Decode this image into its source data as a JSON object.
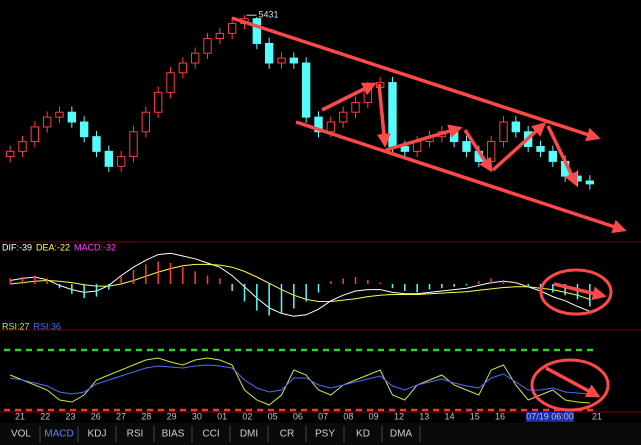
{
  "chart_data": [
    {
      "type": "candlestick",
      "up_color": "#ff3c3c",
      "down_color": "#54fcfc",
      "ylim": [
        4650,
        5470
      ],
      "high_label": "5431",
      "open": [
        4940,
        4958,
        4992,
        5043,
        5077,
        5094,
        5060,
        5009,
        4958,
        4906,
        4940,
        5026,
        5094,
        5163,
        5231,
        5265,
        5299,
        5350,
        5368,
        5402,
        5419,
        5333,
        5265,
        5282,
        5265,
        5077,
        5026,
        5060,
        5094,
        5128,
        5180,
        5197,
        4975,
        4958,
        4992,
        5009,
        5026,
        4992,
        4958,
        4923,
        4992,
        5060,
        5026,
        4975,
        4958,
        4923,
        4872,
        4855
      ],
      "high": [
        4978,
        5012,
        5063,
        5097,
        5114,
        5114,
        5080,
        5029,
        4978,
        4960,
        5046,
        5114,
        5183,
        5251,
        5285,
        5319,
        5370,
        5388,
        5422,
        5431,
        5425,
        5353,
        5302,
        5302,
        5285,
        5097,
        5080,
        5114,
        5148,
        5200,
        5217,
        5217,
        4995,
        5012,
        5029,
        5046,
        5046,
        5012,
        4978,
        5012,
        5080,
        5080,
        5046,
        4995,
        4978,
        4943,
        4892,
        4875
      ],
      "low": [
        4920,
        4938,
        4972,
        5023,
        5057,
        5040,
        4989,
        4938,
        4886,
        4886,
        4920,
        5006,
        5074,
        5143,
        5211,
        5245,
        5279,
        5330,
        5348,
        5382,
        5313,
        5245,
        5245,
        5245,
        5057,
        5006,
        5006,
        5040,
        5074,
        5108,
        5160,
        4955,
        4938,
        4938,
        4972,
        4989,
        4972,
        4938,
        4903,
        4903,
        4972,
        5006,
        4955,
        4938,
        4903,
        4852,
        4835,
        4825
      ],
      "close": [
        4958,
        4992,
        5043,
        5077,
        5094,
        5060,
        5009,
        4958,
        4906,
        4940,
        5026,
        5094,
        5163,
        5231,
        5265,
        5299,
        5350,
        5368,
        5402,
        5419,
        5333,
        5265,
        5282,
        5265,
        5077,
        5026,
        5060,
        5094,
        5128,
        5180,
        5197,
        4975,
        4958,
        4992,
        5009,
        5026,
        4992,
        4958,
        4923,
        4992,
        5060,
        5026,
        4975,
        4958,
        4923,
        4872,
        4855,
        4845
      ]
    },
    {
      "type": "macd",
      "ylim": [
        -60,
        40
      ],
      "series": [
        {
          "label": "DIF:-39",
          "color": "#ffffff",
          "values": [
            5,
            8,
            10,
            6,
            -2,
            -8,
            -12,
            -10,
            -2,
            12,
            24,
            34,
            42,
            44,
            40,
            36,
            30,
            24,
            12,
            -4,
            -20,
            -34,
            -42,
            -46,
            -44,
            -36,
            -24,
            -16,
            -10,
            -8,
            -8,
            -12,
            -14,
            -14,
            -12,
            -10,
            -8,
            -6,
            -2,
            2,
            4,
            2,
            -4,
            -10,
            -18,
            -24,
            -32,
            -39
          ]
        },
        {
          "label": "DEA:-22",
          "color": "#ffff40",
          "values": [
            0,
            2,
            4,
            5,
            4,
            2,
            -1,
            -3,
            -3,
            0,
            5,
            11,
            17,
            22,
            26,
            28,
            28,
            27,
            24,
            18,
            10,
            1,
            -8,
            -16,
            -22,
            -25,
            -25,
            -23,
            -21,
            -18,
            -16,
            -15,
            -15,
            -15,
            -14,
            -13,
            -12,
            -11,
            -9,
            -7,
            -5,
            -4,
            -4,
            -6,
            -8,
            -12,
            -16,
            -22
          ]
        },
        {
          "label": "MACD:-32",
          "color": "#ff40ff",
          "up_color": "#ff3c3c",
          "down_color": "#54fcfc",
          "bars": true,
          "values": [
            8,
            10,
            12,
            8,
            -6,
            -14,
            -20,
            -18,
            -8,
            10,
            20,
            28,
            32,
            30,
            24,
            18,
            12,
            8,
            -10,
            -25,
            -38,
            -45,
            -42,
            -35,
            -25,
            -12,
            4,
            8,
            10,
            6,
            2,
            -6,
            -10,
            -12,
            -8,
            -6,
            -4,
            -2,
            4,
            8,
            6,
            3,
            -4,
            -8,
            -12,
            -16,
            -22,
            -32
          ]
        }
      ]
    },
    {
      "type": "rsi",
      "ylim": [
        10,
        95
      ],
      "levels": [
        {
          "value": 80,
          "color": "#30d030"
        },
        {
          "value": 20,
          "color": "#ff3030"
        }
      ],
      "series": [
        {
          "label": "RSI:27",
          "color": "#c8e840",
          "values": [
            55,
            50,
            45,
            40,
            30,
            28,
            35,
            50,
            55,
            60,
            65,
            70,
            72,
            68,
            65,
            70,
            72,
            70,
            65,
            40,
            30,
            25,
            35,
            60,
            55,
            40,
            35,
            45,
            50,
            55,
            60,
            35,
            30,
            45,
            50,
            55,
            45,
            40,
            35,
            60,
            65,
            45,
            30,
            35,
            40,
            30,
            28,
            27
          ]
        },
        {
          "label": "RSI:36",
          "color": "#4a6cff",
          "values": [
            52,
            50,
            47,
            44,
            38,
            36,
            38,
            46,
            50,
            54,
            58,
            62,
            64,
            63,
            62,
            64,
            65,
            64,
            62,
            50,
            42,
            38,
            40,
            52,
            52,
            45,
            42,
            45,
            48,
            51,
            54,
            44,
            40,
            45,
            48,
            51,
            47,
            44,
            42,
            52,
            56,
            48,
            40,
            40,
            42,
            38,
            37,
            36
          ]
        }
      ]
    }
  ],
  "x_labels": [
    "21",
    "22",
    "23",
    "26",
    "27",
    "28",
    "29",
    "30",
    "01",
    "02",
    "05",
    "06",
    "07",
    "08",
    "09",
    "12",
    "13",
    "14",
    "15",
    "16",
    "07/19 06:00",
    "21"
  ],
  "tabs": [
    "VOL",
    "MACD",
    "KDJ",
    "RSI",
    "BIAS",
    "CCI",
    "DMI",
    "CR",
    "PSY",
    "KD",
    "DMA"
  ],
  "selected_tab": 1
}
